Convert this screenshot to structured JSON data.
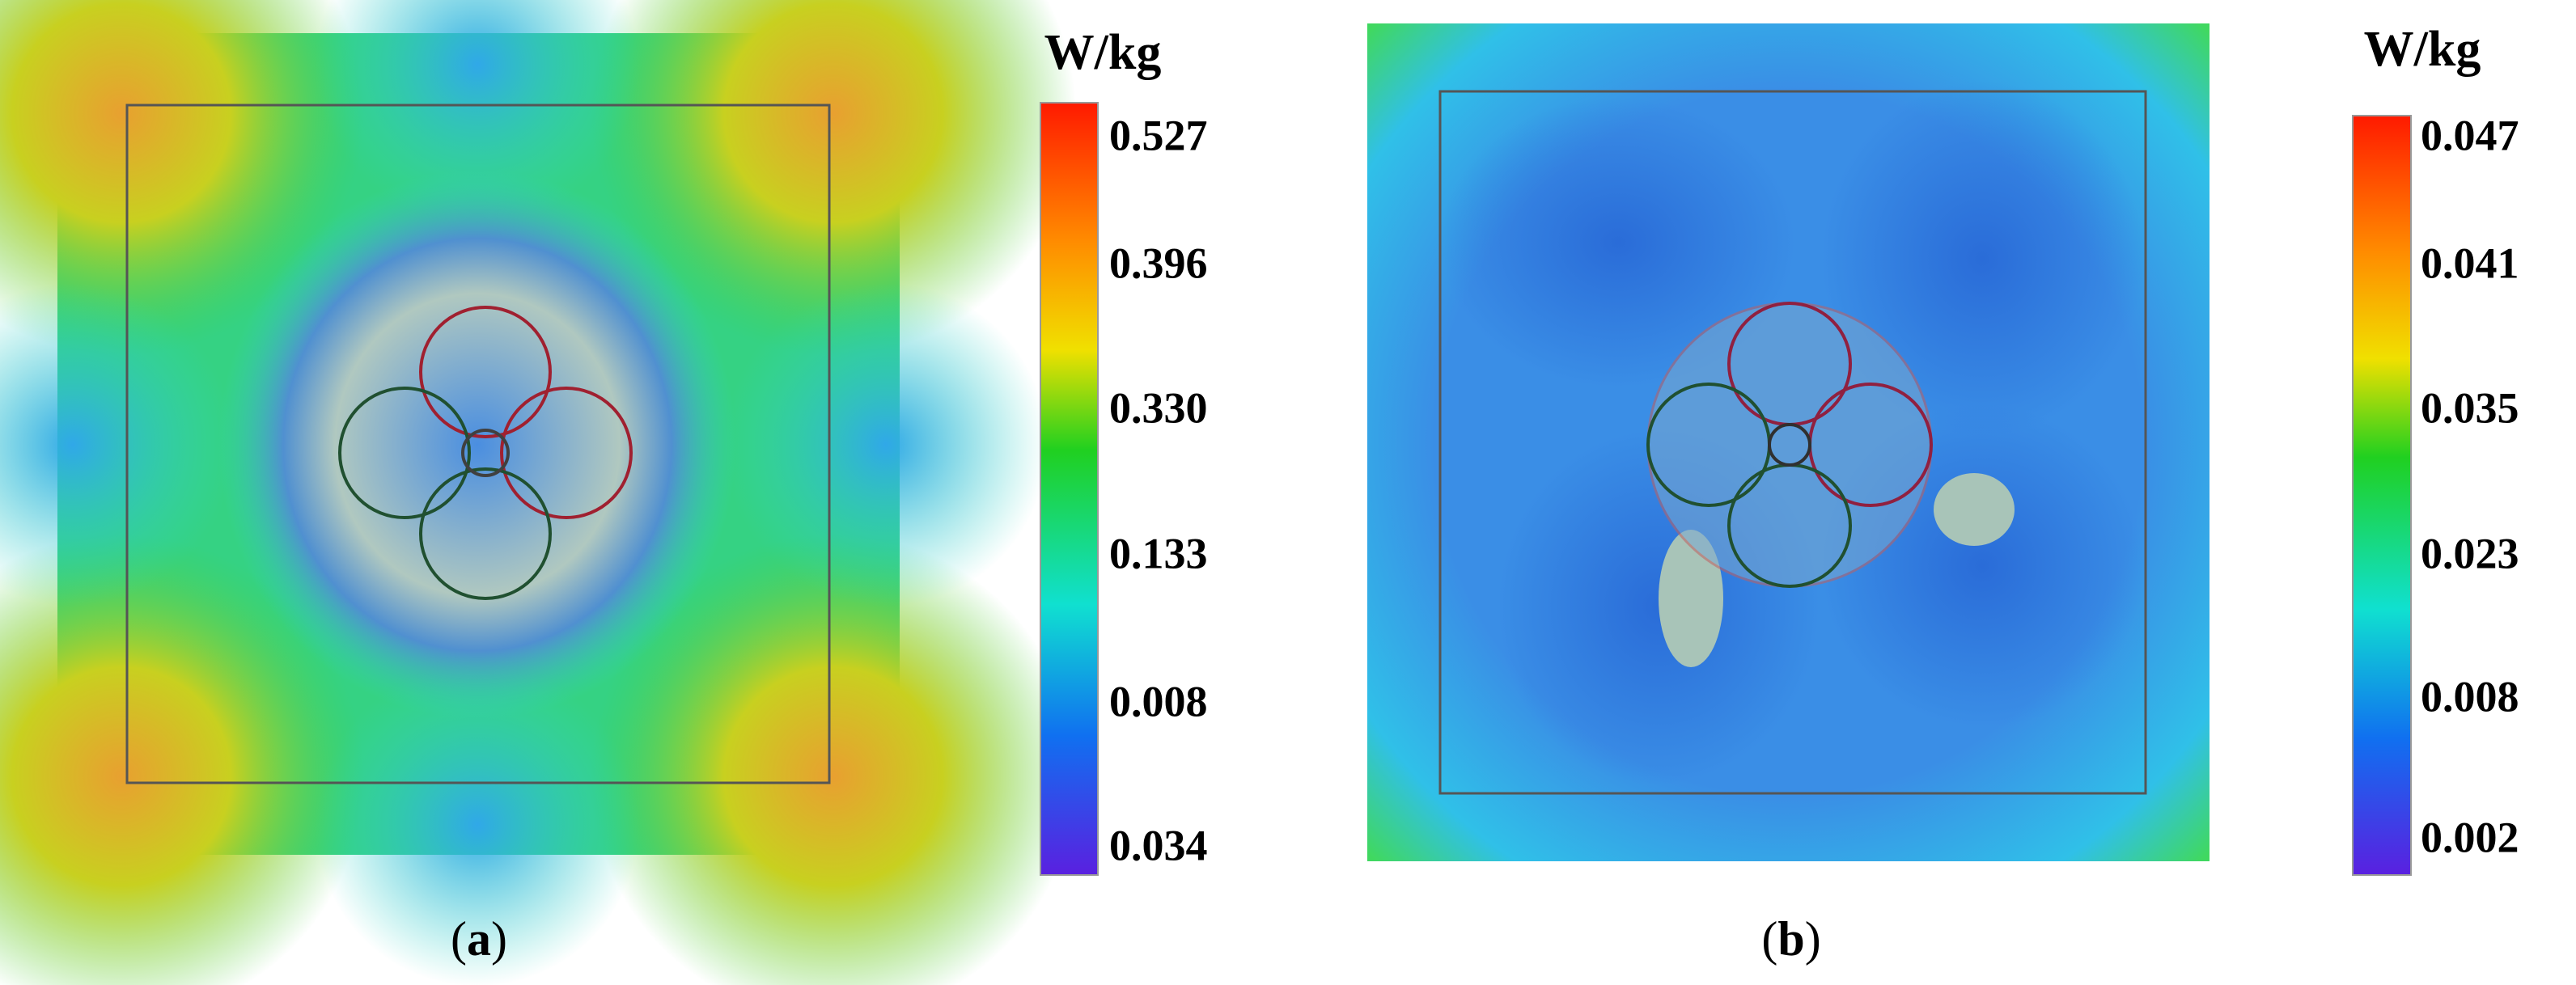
{
  "panels": [
    {
      "unit": "W/kg",
      "ticks": [
        "0.527",
        "0.396",
        "0.330",
        "0.133",
        "0.008",
        "0.034"
      ],
      "caption_letter": "a"
    },
    {
      "unit": "W/kg",
      "ticks": [
        "0.047",
        "0.041",
        "0.035",
        "0.023",
        "0.008",
        "0.002"
      ],
      "caption_letter": "b"
    }
  ]
}
